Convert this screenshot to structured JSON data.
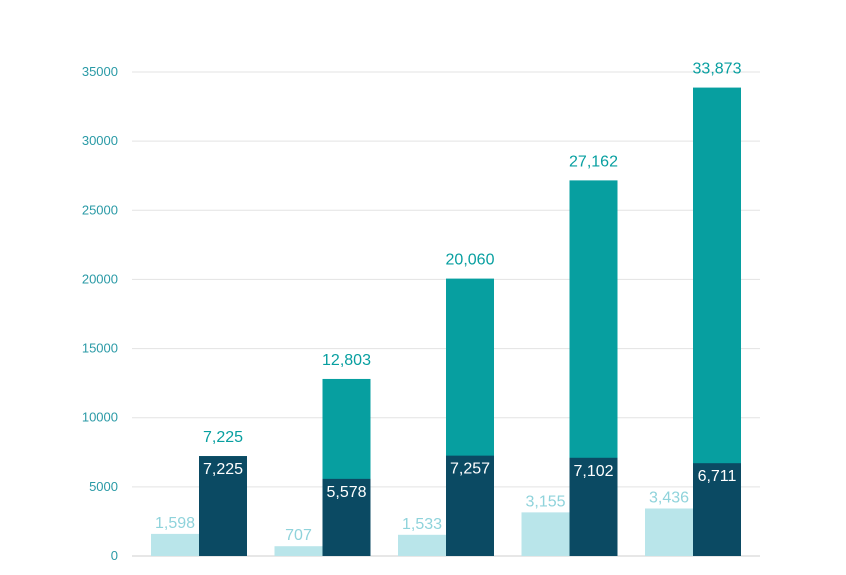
{
  "chart_data": {
    "type": "bar",
    "title": "",
    "xlabel": "",
    "ylabel": "",
    "ylim": [
      0,
      35000
    ],
    "yticks": [
      0,
      5000,
      10000,
      15000,
      20000,
      25000,
      30000,
      35000
    ],
    "ytick_labels": [
      "0",
      "5000",
      "10000",
      "15000",
      "20000",
      "25000",
      "30000",
      "35000"
    ],
    "grid": true,
    "legend": "none",
    "categories": [
      "",
      "",
      "",
      "",
      ""
    ],
    "series": [
      {
        "role": "light",
        "color": "#b9e5ea",
        "label_color": "#8fd3db",
        "values": [
          1598,
          707,
          1533,
          3155,
          3436
        ],
        "labels": [
          "1,598",
          "707",
          "1,533",
          "3,155",
          "3,436"
        ]
      },
      {
        "role": "dark",
        "color": "#0b4a63",
        "label_color": "#ffffff",
        "values": [
          7225,
          5578,
          7257,
          7102,
          6711
        ],
        "labels": [
          "7,225",
          "5,578",
          "7,257",
          "7,102",
          "6,711"
        ]
      },
      {
        "role": "total",
        "color": "#079fa0",
        "label_color": "#079fa0",
        "values": [
          7225,
          12803,
          20060,
          27162,
          33873
        ],
        "labels": [
          "7,225",
          "12,803",
          "20,060",
          "27,162",
          "33,873"
        ]
      }
    ]
  }
}
